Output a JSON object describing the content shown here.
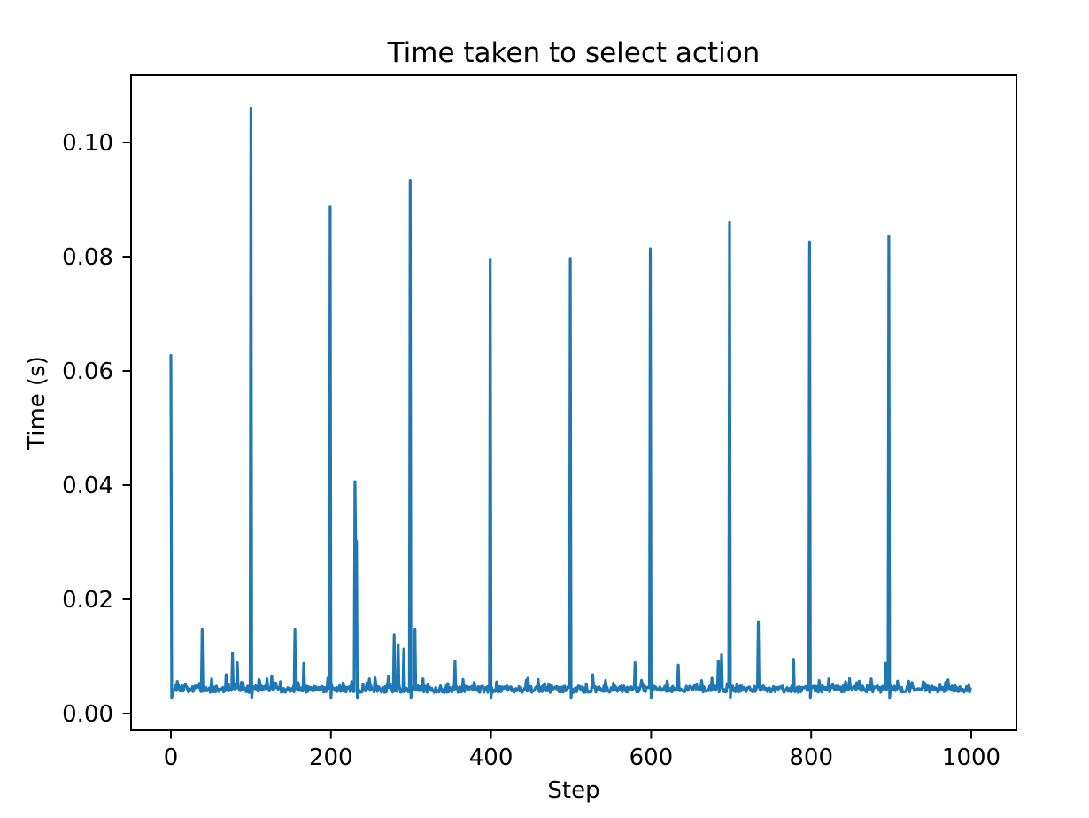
{
  "chart_data": {
    "type": "line",
    "title": "Time taken to select action",
    "xlabel": "Step",
    "ylabel": "Time (s)",
    "xlim": [
      -50,
      1049
    ],
    "ylim": [
      -0.003,
      0.112
    ],
    "grid": false,
    "legend": null,
    "line_color": "#1f77b4",
    "x_ticks": [
      0,
      200,
      400,
      600,
      800,
      1000
    ],
    "x_tick_labels": [
      "0",
      "200",
      "400",
      "600",
      "800",
      "1000"
    ],
    "y_ticks": [
      0.0,
      0.02,
      0.04,
      0.06,
      0.08,
      0.1
    ],
    "y_tick_labels": [
      "0.00",
      "0.02",
      "0.04",
      "0.06",
      "0.08",
      "0.10"
    ],
    "n_points": 1000,
    "baseline": 0.0043,
    "noise_amplitude": 0.0006,
    "spike_undershoot": 0.0027,
    "spikes": [
      [
        0,
        0.0627
      ],
      [
        39,
        0.0148
      ],
      [
        69,
        0.0068
      ],
      [
        77,
        0.0106
      ],
      [
        83,
        0.0089
      ],
      [
        100,
        0.106
      ],
      [
        110,
        0.006
      ],
      [
        120,
        0.0061
      ],
      [
        126,
        0.0066
      ],
      [
        137,
        0.0056
      ],
      [
        155,
        0.0148
      ],
      [
        166,
        0.0088
      ],
      [
        199,
        0.0887
      ],
      [
        230,
        0.0406
      ],
      [
        231,
        0.0285
      ],
      [
        232,
        0.0302
      ],
      [
        248,
        0.0061
      ],
      [
        255,
        0.0063
      ],
      [
        272,
        0.0066
      ],
      [
        279,
        0.0138
      ],
      [
        284,
        0.0121
      ],
      [
        291,
        0.0113
      ],
      [
        299,
        0.0934
      ],
      [
        305,
        0.0148
      ],
      [
        315,
        0.0061
      ],
      [
        355,
        0.0092
      ],
      [
        365,
        0.006
      ],
      [
        399,
        0.0796
      ],
      [
        446,
        0.0062
      ],
      [
        499,
        0.0797
      ],
      [
        527,
        0.0068
      ],
      [
        543,
        0.0058
      ],
      [
        580,
        0.0089
      ],
      [
        599,
        0.0814
      ],
      [
        634,
        0.0085
      ],
      [
        663,
        0.0058
      ],
      [
        676,
        0.0062
      ],
      [
        684,
        0.0092
      ],
      [
        688,
        0.0103
      ],
      [
        698,
        0.086
      ],
      [
        734,
        0.0161
      ],
      [
        778,
        0.0095
      ],
      [
        798,
        0.0826
      ],
      [
        810,
        0.0058
      ],
      [
        822,
        0.0061
      ],
      [
        843,
        0.0056
      ],
      [
        860,
        0.0057
      ],
      [
        875,
        0.0061
      ],
      [
        893,
        0.0088
      ],
      [
        897,
        0.0836
      ],
      [
        908,
        0.0057
      ],
      [
        940,
        0.0056
      ],
      [
        968,
        0.0055
      ]
    ]
  }
}
